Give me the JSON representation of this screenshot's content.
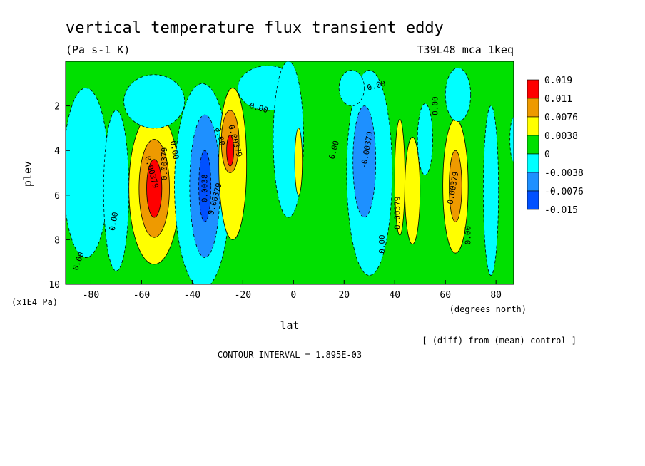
{
  "chart_data": {
    "type": "contour",
    "title": "vertical temperature flux transient eddy",
    "units": "(Pa s-1 K)",
    "run_label": "T39L48_mca_1keq",
    "xlabel": "lat",
    "xunits": "(degrees_north)",
    "ylabel": "plev",
    "yunits": "(x1E4 Pa)",
    "xlim": [
      -90,
      87
    ],
    "ylim": [
      10,
      0
    ],
    "xticks": [
      "-80",
      "-60",
      "-40",
      "-20",
      "0",
      "20",
      "40",
      "60",
      "80"
    ],
    "xtick_values": [
      -80,
      -60,
      -40,
      -20,
      0,
      20,
      40,
      60,
      80
    ],
    "yticks": [
      "2",
      "4",
      "6",
      "8",
      "10"
    ],
    "ytick_values": [
      2,
      4,
      6,
      8,
      10
    ],
    "note": "[ (diff) from (mean) control ]",
    "contour_interval": "CONTOUR INTERVAL = 1.895E-03",
    "colorbar": {
      "labels": [
        "0.019",
        "0.011",
        "0.0076",
        "0.0038",
        "0",
        "-0.0038",
        "-0.0076",
        "-0.015"
      ],
      "colors": [
        "#ff0000",
        "#ee9a00",
        "#ffff00",
        "#00e000",
        "#00ffff",
        "#1e90ff",
        "#0050ff"
      ]
    },
    "contour_labels": [
      "0.00",
      "0.00",
      "0.00379",
      "0.00",
      "0.00379",
      "0.00",
      "-0.0038",
      "0.00379",
      "0.00",
      "-0.00379",
      "0.00379",
      "0.00",
      "0.00379",
      "0.00",
      "0.00",
      "0.00",
      "0.00",
      "0.00379"
    ],
    "blobs": [
      {
        "level": -1,
        "lat": -82,
        "p": 5.0,
        "rl": 9,
        "rp": 3.8
      },
      {
        "level": -1,
        "lat": -70,
        "p": 5.8,
        "rl": 5,
        "rp": 3.6
      },
      {
        "level": 1,
        "lat": -55,
        "p": 5.7,
        "rl": 10,
        "rp": 3.4
      },
      {
        "level": 2,
        "lat": -55,
        "p": 5.7,
        "rl": 6,
        "rp": 2.2
      },
      {
        "level": 3,
        "lat": -55,
        "p": 5.7,
        "rl": 3,
        "rp": 1.3
      },
      {
        "level": -1,
        "lat": -36,
        "p": 5.6,
        "rl": 11,
        "rp": 4.6
      },
      {
        "level": -2,
        "lat": -35,
        "p": 5.6,
        "rl": 6,
        "rp": 3.2
      },
      {
        "level": -3,
        "lat": -35,
        "p": 5.6,
        "rl": 2.4,
        "rp": 1.6
      },
      {
        "level": -1,
        "lat": -55,
        "p": 1.8,
        "rl": 12,
        "rp": 1.2
      },
      {
        "level": 1,
        "lat": -24,
        "p": 4.6,
        "rl": 5.5,
        "rp": 3.4
      },
      {
        "level": 2,
        "lat": -25,
        "p": 3.6,
        "rl": 3.5,
        "rp": 1.4
      },
      {
        "level": 3,
        "lat": -25,
        "p": 4.0,
        "rl": 1.4,
        "rp": 0.7
      },
      {
        "level": -1,
        "lat": -10,
        "p": 1.2,
        "rl": 12,
        "rp": 1.0
      },
      {
        "level": -1,
        "lat": -2,
        "p": 3.5,
        "rl": 6,
        "rp": 3.5
      },
      {
        "level": 1,
        "lat": 2,
        "p": 4.5,
        "rl": 1.5,
        "rp": 1.5
      },
      {
        "level": -1,
        "lat": 30,
        "p": 5.0,
        "rl": 9,
        "rp": 4.6
      },
      {
        "level": -2,
        "lat": 28,
        "p": 4.5,
        "rl": 4.5,
        "rp": 2.5
      },
      {
        "level": -1,
        "lat": 23,
        "p": 1.2,
        "rl": 5,
        "rp": 0.8
      },
      {
        "level": 1,
        "lat": 42,
        "p": 5.2,
        "rl": 2,
        "rp": 2.6
      },
      {
        "level": 1,
        "lat": 47,
        "p": 5.8,
        "rl": 3,
        "rp": 2.4
      },
      {
        "level": -1,
        "lat": 52,
        "p": 3.5,
        "rl": 3,
        "rp": 1.6
      },
      {
        "level": 1,
        "lat": 64,
        "p": 5.6,
        "rl": 5,
        "rp": 3.0
      },
      {
        "level": 2,
        "lat": 64,
        "p": 5.6,
        "rl": 2.5,
        "rp": 1.6
      },
      {
        "level": -1,
        "lat": 65,
        "p": 1.5,
        "rl": 5,
        "rp": 1.2
      },
      {
        "level": -1,
        "lat": 78,
        "p": 5.8,
        "rl": 3,
        "rp": 3.8
      },
      {
        "level": -1,
        "lat": 87,
        "p": 3.5,
        "rl": 1.5,
        "rp": 1.0
      }
    ]
  }
}
